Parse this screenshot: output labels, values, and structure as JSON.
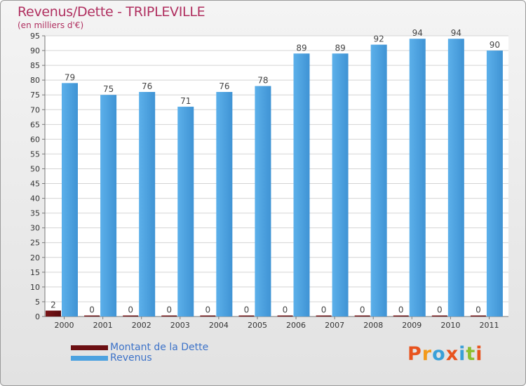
{
  "header": {
    "title": "Revenus/Dette - TRIPLEVILLE",
    "subtitle": "(en milliers d'€)"
  },
  "legend": {
    "items": [
      {
        "label": "Montant de la Dette",
        "color": "#6b0f12"
      },
      {
        "label": "Revenus",
        "color": "#4da2e0"
      }
    ]
  },
  "logo": {
    "text": "Proxiti",
    "colors": [
      "#e8531e",
      "#f39a1a",
      "#3aa0d8",
      "#e8531e",
      "#3aa0d8",
      "#8cbf2f",
      "#e8531e"
    ]
  },
  "chart_data": {
    "type": "bar",
    "title": "Revenus/Dette - TRIPLEVILLE",
    "ylabel": "(en milliers d'€)",
    "xlabel": "",
    "categories": [
      "2000",
      "2001",
      "2002",
      "2003",
      "2004",
      "2005",
      "2006",
      "2007",
      "2008",
      "2009",
      "2010",
      "2011"
    ],
    "series": [
      {
        "name": "Montant de la Dette",
        "color": "#6b0f12",
        "values": [
          2,
          0,
          0,
          0,
          0,
          0,
          0,
          0,
          0,
          0,
          0,
          0
        ]
      },
      {
        "name": "Revenus",
        "color": "#4da2e0",
        "values": [
          79,
          75,
          76,
          71,
          76,
          78,
          89,
          89,
          92,
          94,
          94,
          90
        ]
      }
    ],
    "ylim": [
      0,
      95
    ],
    "yticks": [
      0,
      5,
      10,
      15,
      20,
      25,
      30,
      35,
      40,
      45,
      50,
      55,
      60,
      65,
      70,
      75,
      80,
      85,
      90,
      95
    ],
    "grid": true,
    "legend_position": "bottom-left"
  }
}
